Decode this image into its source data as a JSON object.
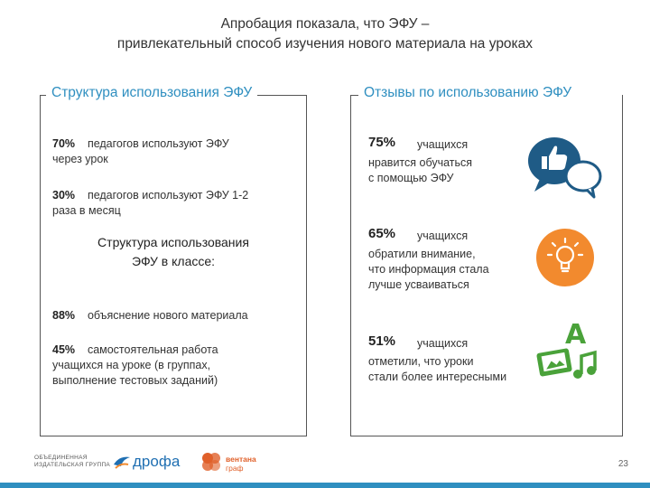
{
  "title": {
    "line1": "Апробация показала, что ЭФУ –",
    "line2": "привлекательный способ изучения нового материала на уроках"
  },
  "left": {
    "heading": "Структура использования ЭФУ",
    "stat1": {
      "pct": "70%",
      "text": "педагогов используют ЭФУ",
      "text2": "через урок"
    },
    "stat2": {
      "pct": "30%",
      "text": "педагогов используют ЭФУ 1-2",
      "text2": "раза в месяц"
    },
    "subheading": {
      "line1": "Структура использования",
      "line2": "ЭФУ в классе:"
    },
    "stat3": {
      "pct": "88%",
      "text": "объяснение нового материала"
    },
    "stat4": {
      "pct": "45%",
      "text": "самостоятельная работа",
      "text2": "учащихся на уроке (в группах,",
      "text3": "выполнение тестовых заданий)"
    }
  },
  "right": {
    "heading": "Отзывы по использованию ЭФУ",
    "reviews": [
      {
        "pct": "75%",
        "who": "учащихся",
        "line1": "нравится обучаться",
        "line2": "с помощью ЭФУ",
        "line3": "",
        "icon": "chat-like-icon"
      },
      {
        "pct": "65%",
        "who": "учащихся",
        "line1": "обратили внимание,",
        "line2": "что информация стала",
        "line3": "лучше усваиваться",
        "icon": "lightbulb-icon"
      },
      {
        "pct": "51%",
        "who": "учащихся",
        "line1": "отметили, что уроки",
        "line2": "стали более интересными",
        "line3": "",
        "icon": "media-icon"
      }
    ]
  },
  "footer": {
    "logo1_line1": "ОБЪЕДИНЕННАЯ",
    "logo1_line2": "ИЗДАТЕЛЬСКАЯ ГРУППА",
    "logo2": "дрофа",
    "logo3_line1": "вентана",
    "logo3_line2": "граф",
    "page_number": "23"
  },
  "colors": {
    "accent_blue": "#2f8fc0",
    "accent_orange": "#f28a2e",
    "dark_blue": "#1f5b86",
    "green": "#4aa23a"
  }
}
